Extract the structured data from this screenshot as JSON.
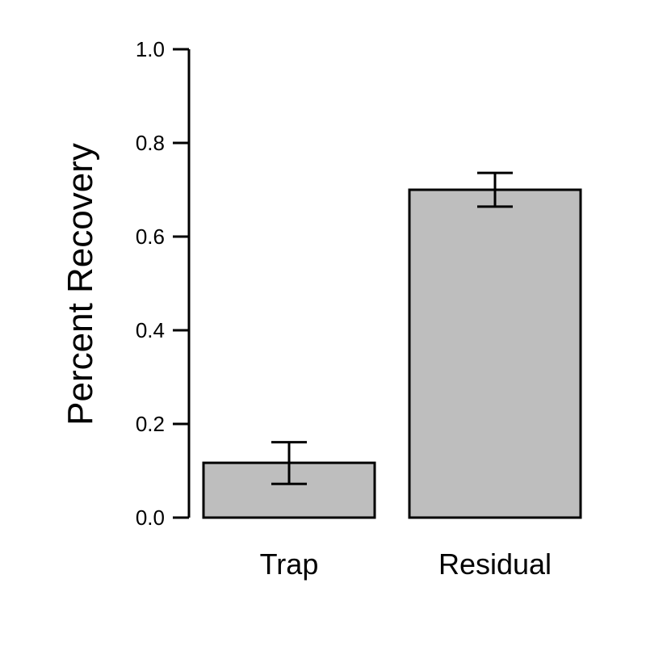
{
  "chart_data": {
    "type": "bar",
    "title": "",
    "xlabel": "",
    "ylabel": "Percent Recovery",
    "ylim": [
      0,
      1.0
    ],
    "yticks": [
      "0.0",
      "0.2",
      "0.4",
      "0.6",
      "0.8",
      "1.0"
    ],
    "categories": [
      "Trap",
      "Residual"
    ],
    "values": [
      0.117,
      0.7
    ],
    "error_low": [
      0.072,
      0.664
    ],
    "error_high": [
      0.161,
      0.736
    ],
    "grid": false,
    "bar_color": "#bebebe"
  }
}
